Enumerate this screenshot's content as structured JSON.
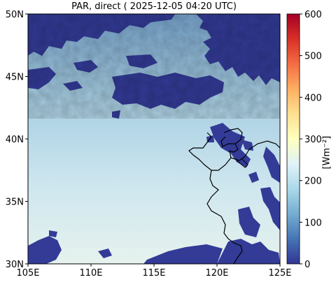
{
  "title": "PAR, direct ( 2025-12-05 04:20 UTC)",
  "map": {
    "lon_range": [
      105,
      125
    ],
    "lat_range": [
      30,
      50
    ],
    "x_ticks": [
      "105E",
      "110E",
      "115E",
      "120E",
      "125E"
    ],
    "y_ticks": [
      "30N",
      "35N",
      "40N",
      "45N",
      "50N"
    ]
  },
  "colorbar": {
    "unit": "[Wm⁻²]",
    "ticks": [
      "0",
      "100",
      "200",
      "300",
      "400",
      "500",
      "600"
    ],
    "range": [
      0,
      600
    ],
    "colors": [
      "#313695",
      "#4575b4",
      "#74add1",
      "#abd9e9",
      "#e0f3f8",
      "#ffffbf",
      "#fee090",
      "#fdae61",
      "#f46d43",
      "#d73027",
      "#a50026"
    ]
  },
  "colors": {
    "cloud": "#333b97",
    "clear_sky_north": "#7aa8cf",
    "clear_sky_south": "#e2f0f2",
    "coastline": "#000000"
  }
}
